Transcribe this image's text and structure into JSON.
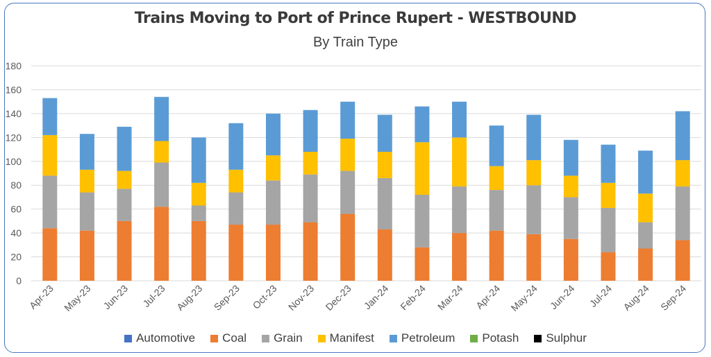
{
  "chart_data": {
    "type": "bar",
    "stacked": true,
    "title": "Trains Moving to Port of Prince Rupert - WESTBOUND",
    "subtitle": "By Train Type",
    "categories": [
      "Apr-23",
      "May-23",
      "Jun-23",
      "Jul-23",
      "Aug-23",
      "Sep-23",
      "Oct-23",
      "Nov-23",
      "Dec-23",
      "Jan-24",
      "Feb-24",
      "Mar-24",
      "Apr-24",
      "May-24",
      "Jun-24",
      "Jul-24",
      "Aug-24",
      "Sep-24"
    ],
    "ylim": [
      0,
      180
    ],
    "yticks": [
      0,
      20,
      40,
      60,
      80,
      100,
      120,
      140,
      160,
      180
    ],
    "grid": true,
    "legend_position": "bottom",
    "series": [
      {
        "name": "Automotive",
        "color": "#4472c4",
        "values": [
          0,
          0,
          0,
          0,
          0,
          0,
          0,
          0,
          0,
          0,
          0,
          0,
          0,
          0,
          0,
          0,
          0,
          0
        ]
      },
      {
        "name": "Coal",
        "color": "#ed7d31",
        "values": [
          44,
          42,
          50,
          62,
          50,
          47,
          47,
          49,
          56,
          43,
          28,
          40,
          42,
          39,
          35,
          24,
          27,
          34
        ]
      },
      {
        "name": "Grain",
        "color": "#a5a5a5",
        "values": [
          44,
          32,
          27,
          37,
          13,
          27,
          37,
          40,
          36,
          43,
          44,
          39,
          34,
          41,
          35,
          37,
          22,
          45
        ]
      },
      {
        "name": "Manifest",
        "color": "#ffc000",
        "values": [
          34,
          19,
          15,
          18,
          19,
          19,
          21,
          19,
          27,
          22,
          44,
          41,
          20,
          21,
          18,
          21,
          24,
          22
        ]
      },
      {
        "name": "Petroleum",
        "color": "#5b9bd5",
        "values": [
          31,
          30,
          37,
          37,
          38,
          39,
          35,
          35,
          31,
          31,
          30,
          30,
          34,
          38,
          30,
          32,
          36,
          41
        ]
      },
      {
        "name": "Potash",
        "color": "#70ad47",
        "values": [
          0,
          0,
          0,
          0,
          0,
          0,
          0,
          0,
          0,
          0,
          0,
          0,
          0,
          0,
          0,
          0,
          0,
          0
        ]
      },
      {
        "name": "Sulphur",
        "color": "#000000",
        "values": [
          0,
          0,
          0,
          0,
          0,
          0,
          0,
          0,
          0,
          0,
          0,
          0,
          0,
          0,
          0,
          0,
          0,
          0
        ]
      }
    ]
  }
}
